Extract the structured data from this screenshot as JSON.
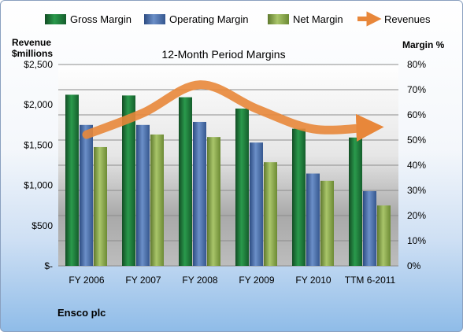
{
  "company": "Ensco plc",
  "chart_data": {
    "type": "bar",
    "title": "12-Month Period Margins",
    "left_axis_label_line1": "Revenue",
    "left_axis_label_line2": "$millions",
    "right_axis_label": "Margin %",
    "categories": [
      "FY 2006",
      "FY 2007",
      "FY 2008",
      "FY 2009",
      "FY 2010",
      "TTM 6-2011"
    ],
    "left_ylim": [
      0,
      2500
    ],
    "left_ticks": [
      "$-",
      "$500",
      "$1,000",
      "$1,500",
      "$2,000",
      "$2,500"
    ],
    "right_ylim": [
      0,
      80
    ],
    "right_ticks": [
      "0%",
      "10%",
      "20%",
      "30%",
      "40%",
      "50%",
      "60%",
      "70%",
      "80%"
    ],
    "grid": true,
    "legend_position": "top",
    "series": [
      {
        "name": "Gross Margin",
        "axis": "right",
        "color": "#1e7a3c",
        "values": [
          68,
          67.7,
          67,
          62.5,
          54.5,
          51
        ]
      },
      {
        "name": "Operating Margin",
        "axis": "right",
        "color": "#4a6fae",
        "values": [
          56,
          56,
          57.2,
          49,
          36.7,
          29.7
        ]
      },
      {
        "name": "Net Margin",
        "axis": "right",
        "color": "#8fae4e",
        "values": [
          47.2,
          52.2,
          51.2,
          41.2,
          33.8,
          24
        ]
      },
      {
        "name": "Revenues",
        "type": "line",
        "axis": "left",
        "color": "#e8873a",
        "values": [
          1630,
          1900,
          2250,
          1950,
          1700,
          1720
        ]
      }
    ]
  }
}
